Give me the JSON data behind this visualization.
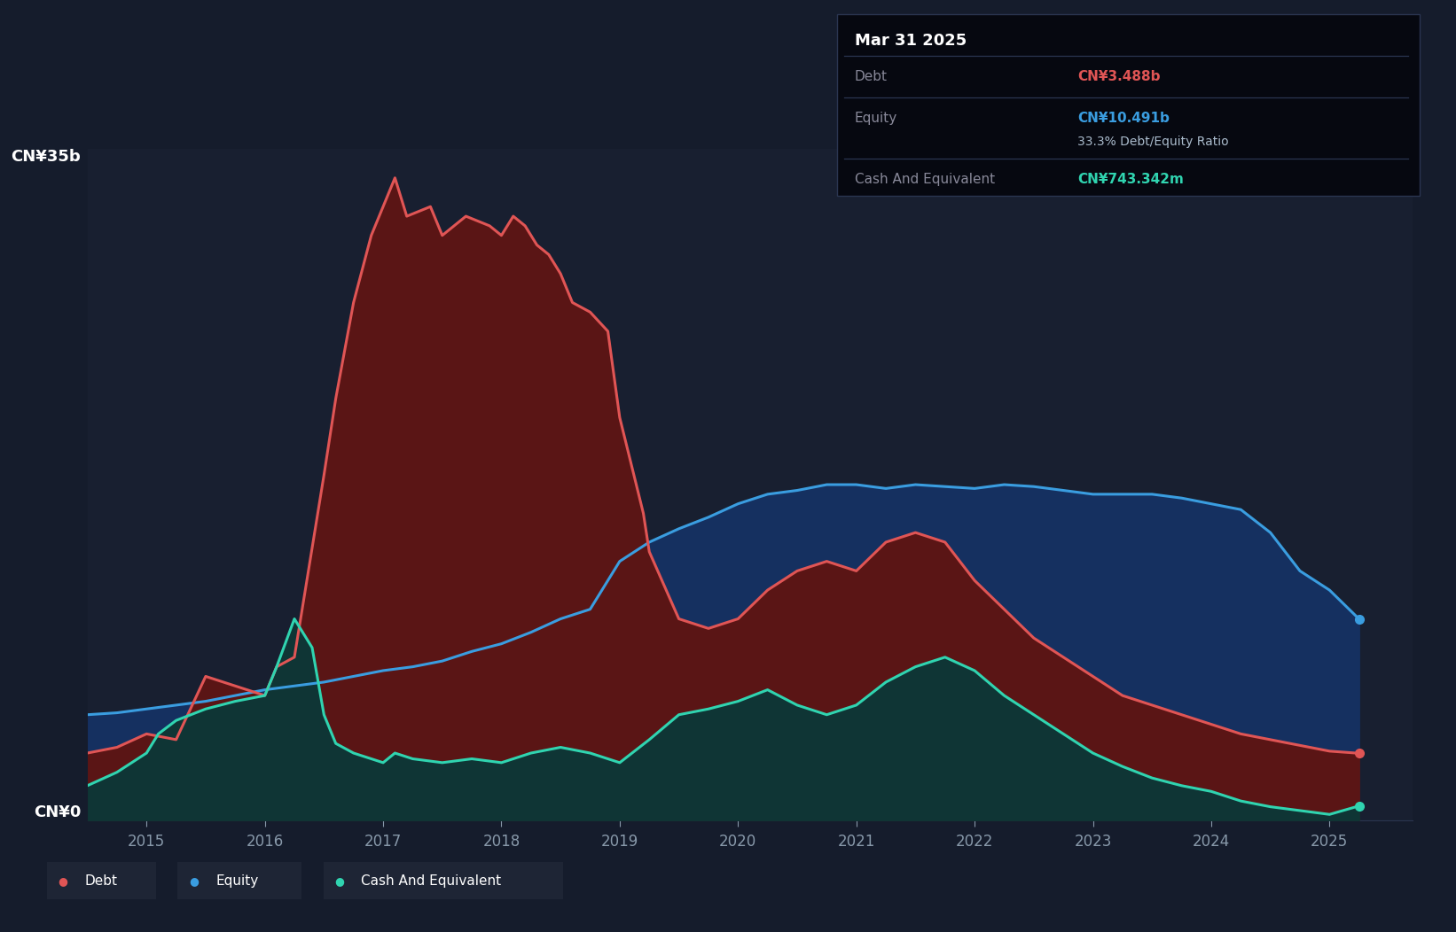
{
  "bg_color": "#151c2c",
  "plot_bg_color": "#181f30",
  "grid_color": "#252d45",
  "ylabel_top": "CN¥35b",
  "ylabel_bottom": "CN¥0",
  "xmin": 2014.5,
  "xmax": 2025.7,
  "ymin": 0,
  "ymax": 35,
  "debt_color": "#e05555",
  "equity_color": "#3a9de0",
  "cash_color": "#30d4b0",
  "debt_fill": "#5a1515",
  "equity_fill": "#153060",
  "cash_fill": "#0f3535",
  "legend_labels": [
    "Debt",
    "Equity",
    "Cash And Equivalent"
  ],
  "tooltip": {
    "date": "Mar 31 2025",
    "debt_label": "Debt",
    "debt_value": "CN¥3.488b",
    "equity_label": "Equity",
    "equity_value": "CN¥10.491b",
    "ratio": "33.3% Debt/Equity Ratio",
    "cash_label": "Cash And Equivalent",
    "cash_value": "CN¥743.342m"
  },
  "debt_x": [
    2014.5,
    2014.75,
    2015.0,
    2015.25,
    2015.5,
    2015.75,
    2016.0,
    2016.1,
    2016.25,
    2016.5,
    2016.6,
    2016.75,
    2016.9,
    2017.0,
    2017.1,
    2017.2,
    2017.4,
    2017.5,
    2017.7,
    2017.9,
    2018.0,
    2018.1,
    2018.2,
    2018.3,
    2018.4,
    2018.5,
    2018.6,
    2018.75,
    2018.9,
    2019.0,
    2019.1,
    2019.2,
    2019.25,
    2019.5,
    2019.75,
    2020.0,
    2020.25,
    2020.5,
    2020.75,
    2021.0,
    2021.25,
    2021.5,
    2021.75,
    2022.0,
    2022.25,
    2022.5,
    2022.75,
    2023.0,
    2023.25,
    2023.5,
    2023.75,
    2024.0,
    2024.25,
    2024.5,
    2024.75,
    2025.0,
    2025.25
  ],
  "debt_y": [
    3.5,
    3.8,
    4.5,
    4.2,
    7.5,
    7.0,
    6.5,
    8.0,
    8.5,
    18.0,
    22.0,
    27.0,
    30.5,
    32.0,
    33.5,
    31.5,
    32.0,
    30.5,
    31.5,
    31.0,
    30.5,
    31.5,
    31.0,
    30.0,
    29.5,
    28.5,
    27.0,
    26.5,
    25.5,
    21.0,
    18.5,
    16.0,
    14.0,
    10.5,
    10.0,
    10.5,
    12.0,
    13.0,
    13.5,
    13.0,
    14.5,
    15.0,
    14.5,
    12.5,
    11.0,
    9.5,
    8.5,
    7.5,
    6.5,
    6.0,
    5.5,
    5.0,
    4.5,
    4.2,
    3.9,
    3.6,
    3.488
  ],
  "equity_x": [
    2014.5,
    2014.75,
    2015.0,
    2015.25,
    2015.5,
    2015.75,
    2016.0,
    2016.25,
    2016.5,
    2016.75,
    2017.0,
    2017.25,
    2017.5,
    2017.75,
    2018.0,
    2018.25,
    2018.5,
    2018.75,
    2019.0,
    2019.25,
    2019.5,
    2019.75,
    2020.0,
    2020.25,
    2020.5,
    2020.75,
    2021.0,
    2021.25,
    2021.5,
    2021.75,
    2022.0,
    2022.25,
    2022.5,
    2022.75,
    2023.0,
    2023.25,
    2023.5,
    2023.75,
    2024.0,
    2024.25,
    2024.5,
    2024.75,
    2025.0,
    2025.25
  ],
  "equity_y": [
    5.5,
    5.6,
    5.8,
    6.0,
    6.2,
    6.5,
    6.8,
    7.0,
    7.2,
    7.5,
    7.8,
    8.0,
    8.3,
    8.8,
    9.2,
    9.8,
    10.5,
    11.0,
    13.5,
    14.5,
    15.2,
    15.8,
    16.5,
    17.0,
    17.2,
    17.5,
    17.5,
    17.3,
    17.5,
    17.4,
    17.3,
    17.5,
    17.4,
    17.2,
    17.0,
    17.0,
    17.0,
    16.8,
    16.5,
    16.2,
    15.0,
    13.0,
    12.0,
    10.491
  ],
  "cash_x": [
    2014.5,
    2014.75,
    2015.0,
    2015.1,
    2015.25,
    2015.5,
    2015.75,
    2016.0,
    2016.1,
    2016.25,
    2016.4,
    2016.5,
    2016.6,
    2016.75,
    2016.9,
    2017.0,
    2017.1,
    2017.25,
    2017.5,
    2017.75,
    2018.0,
    2018.25,
    2018.5,
    2018.75,
    2019.0,
    2019.25,
    2019.5,
    2019.75,
    2020.0,
    2020.25,
    2020.5,
    2020.75,
    2021.0,
    2021.25,
    2021.5,
    2021.75,
    2022.0,
    2022.25,
    2022.5,
    2022.75,
    2023.0,
    2023.25,
    2023.5,
    2023.75,
    2024.0,
    2024.25,
    2024.5,
    2024.75,
    2025.0,
    2025.25
  ],
  "cash_y": [
    1.8,
    2.5,
    3.5,
    4.5,
    5.2,
    5.8,
    6.2,
    6.5,
    8.0,
    10.5,
    9.0,
    5.5,
    4.0,
    3.5,
    3.2,
    3.0,
    3.5,
    3.2,
    3.0,
    3.2,
    3.0,
    3.5,
    3.8,
    3.5,
    3.0,
    4.2,
    5.5,
    5.8,
    6.2,
    6.8,
    6.0,
    5.5,
    6.0,
    7.2,
    8.0,
    8.5,
    7.8,
    6.5,
    5.5,
    4.5,
    3.5,
    2.8,
    2.2,
    1.8,
    1.5,
    1.0,
    0.7,
    0.5,
    0.3,
    0.743
  ]
}
